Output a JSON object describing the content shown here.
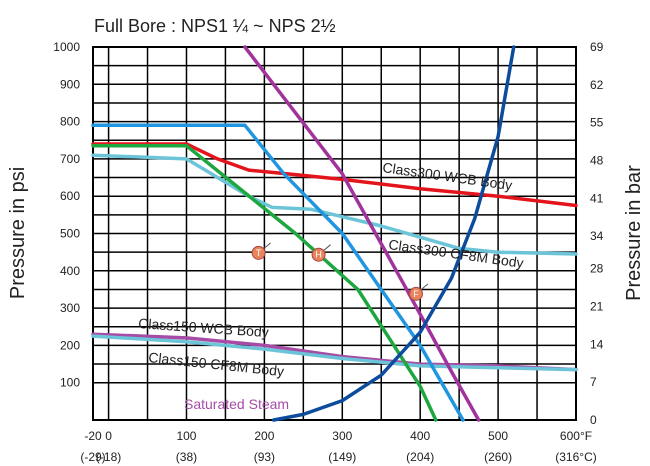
{
  "chart_data": {
    "type": "line",
    "title": "Full Bore : NPS1 ¼ ~ NPS  2½",
    "ylabel": "Pressure in psi",
    "y2label": "Pressure in bar",
    "xlim": [
      -20,
      600
    ],
    "ylim": [
      0,
      1000
    ],
    "grid": true,
    "x_ticks": [
      {
        "value": -20,
        "label": "-20"
      },
      {
        "value": 0,
        "label": "0"
      },
      {
        "value": 100,
        "label": "100"
      },
      {
        "value": 200,
        "label": "200"
      },
      {
        "value": 300,
        "label": "300"
      },
      {
        "value": 400,
        "label": "400"
      },
      {
        "value": 500,
        "label": "500"
      },
      {
        "value": 600,
        "label": "600°F"
      }
    ],
    "x_celsius_ticks": [
      {
        "value": -20,
        "label": "(-29)"
      },
      {
        "value": 0,
        "label": "(-18)"
      },
      {
        "value": 100,
        "label": "(38)"
      },
      {
        "value": 200,
        "label": "(93)"
      },
      {
        "value": 300,
        "label": "(149)"
      },
      {
        "value": 400,
        "label": "(204)"
      },
      {
        "value": 500,
        "label": "(260)"
      },
      {
        "value": 600,
        "label": "(316°C)"
      }
    ],
    "y_ticks": [
      {
        "value": 100,
        "label": "100"
      },
      {
        "value": 200,
        "label": "200"
      },
      {
        "value": 300,
        "label": "300"
      },
      {
        "value": 400,
        "label": "400"
      },
      {
        "value": 500,
        "label": "500"
      },
      {
        "value": 600,
        "label": "600"
      },
      {
        "value": 700,
        "label": "700"
      },
      {
        "value": 800,
        "label": "800"
      },
      {
        "value": 900,
        "label": "900"
      },
      {
        "value": 1000,
        "label": "1000"
      }
    ],
    "y2_ticks": [
      {
        "value": 0,
        "label": "0"
      },
      {
        "value": 7,
        "label": "7"
      },
      {
        "value": 14,
        "label": "14"
      },
      {
        "value": 21,
        "label": "21"
      },
      {
        "value": 28,
        "label": "28"
      },
      {
        "value": 34,
        "label": "34"
      },
      {
        "value": 41,
        "label": "41"
      },
      {
        "value": 48,
        "label": "48"
      },
      {
        "value": 55,
        "label": "55"
      },
      {
        "value": 62,
        "label": "62"
      },
      {
        "value": 69,
        "label": "69"
      }
    ],
    "series": [
      {
        "name": "Class300 WCB Body",
        "color": "#e3141b",
        "x": [
          -20,
          100,
          140,
          180,
          240,
          300,
          400,
          500,
          600
        ],
        "y": [
          740,
          740,
          700,
          670,
          658,
          645,
          620,
          600,
          575
        ]
      },
      {
        "name": "Class300 CF8M Body",
        "color": "#6cc4d8",
        "x": [
          -20,
          100,
          140,
          180,
          210,
          260,
          300,
          350,
          400,
          450,
          500,
          600
        ],
        "y": [
          710,
          700,
          650,
          600,
          570,
          565,
          545,
          520,
          490,
          460,
          450,
          445
        ]
      },
      {
        "name": "Class150 WCB Body",
        "color": "#a64ca6",
        "x": [
          -20,
          100,
          200,
          300,
          400,
          500,
          600
        ],
        "y": [
          230,
          220,
          200,
          170,
          150,
          145,
          135
        ]
      },
      {
        "name": "Class150 CF8M Body",
        "color": "#6cc4d8",
        "x": [
          -20,
          100,
          200,
          300,
          400,
          500,
          600
        ],
        "y": [
          225,
          210,
          190,
          165,
          145,
          140,
          135
        ]
      },
      {
        "name": "",
        "color": "#2196e0",
        "x": [
          -20,
          175,
          225,
          300,
          350,
          400,
          455
        ],
        "y": [
          790,
          790,
          660,
          500,
          350,
          200,
          0
        ]
      },
      {
        "name": "",
        "color": "#1ea63f",
        "x": [
          -20,
          100,
          240,
          320,
          400,
          420
        ],
        "y": [
          735,
          735,
          500,
          350,
          90,
          0
        ]
      },
      {
        "name": "",
        "color": "#a1339c",
        "x": [
          175,
          300,
          380,
          440,
          475
        ],
        "y": [
          1000,
          660,
          360,
          130,
          0
        ]
      },
      {
        "name": "Saturated Steam",
        "color": "#0d4c9c",
        "x": [
          212,
          250,
          300,
          350,
          400,
          440,
          470,
          500,
          520
        ],
        "y": [
          0,
          15,
          52,
          120,
          235,
          380,
          540,
          760,
          1000
        ]
      }
    ],
    "markers": [
      {
        "label": "T",
        "x": 208,
        "y": 475
      },
      {
        "label": "H",
        "x": 285,
        "y": 470
      },
      {
        "label": "F",
        "x": 410,
        "y": 365
      }
    ]
  }
}
